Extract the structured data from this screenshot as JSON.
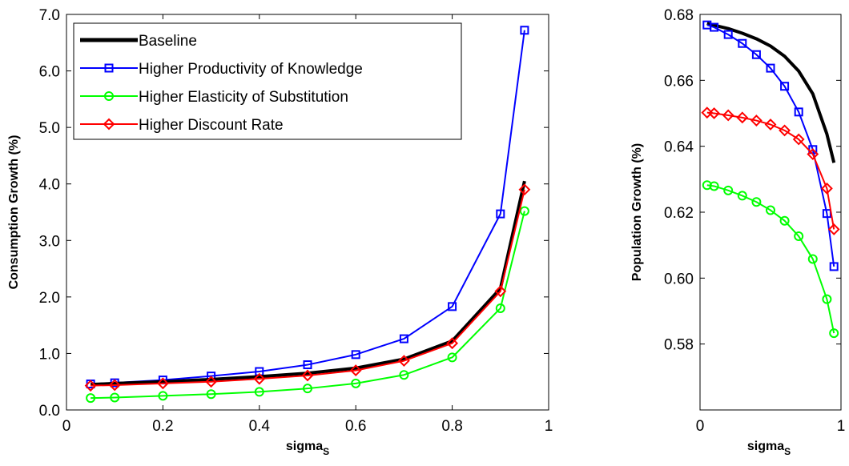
{
  "chart_data": [
    {
      "type": "line",
      "xlabel": "sigma",
      "xlabel_subscript": "S",
      "ylabel": "Consumption Growth (%)",
      "xlim": [
        0,
        1
      ],
      "ylim": [
        0,
        7
      ],
      "xticks": [
        "0",
        "0.2",
        "0.4",
        "0.6",
        "0.8",
        "1"
      ],
      "yticks": [
        "0.0",
        "1.0",
        "2.0",
        "3.0",
        "4.0",
        "5.0",
        "6.0",
        "7.0"
      ],
      "grid": false,
      "legend_position": "top-left",
      "x": [
        0.05,
        0.1,
        0.2,
        0.3,
        0.4,
        0.5,
        0.6,
        0.7,
        0.8,
        0.9,
        0.95
      ],
      "series": [
        {
          "name": "Baseline",
          "color": "#000000",
          "marker": "none",
          "values": [
            0.45,
            0.47,
            0.5,
            0.54,
            0.59,
            0.65,
            0.74,
            0.9,
            1.22,
            2.15,
            4.05
          ]
        },
        {
          "name": "Higher Productivity of Knowledge",
          "color": "#0000ff",
          "marker": "square",
          "values": [
            0.46,
            0.48,
            0.53,
            0.6,
            0.68,
            0.8,
            0.98,
            1.26,
            1.83,
            3.47,
            6.72
          ]
        },
        {
          "name": "Higher Elasticity of Substitution",
          "color": "#00ff00",
          "marker": "circle",
          "values": [
            0.21,
            0.22,
            0.25,
            0.28,
            0.32,
            0.38,
            0.47,
            0.62,
            0.93,
            1.8,
            3.52
          ]
        },
        {
          "name": "Higher Discount Rate",
          "color": "#ff0000",
          "marker": "diamond",
          "values": [
            0.43,
            0.44,
            0.47,
            0.5,
            0.55,
            0.61,
            0.7,
            0.87,
            1.18,
            2.1,
            3.9
          ]
        }
      ]
    },
    {
      "type": "line",
      "xlabel": "sigma",
      "xlabel_subscript": "S",
      "ylabel": "Population Growth (%)",
      "xlim": [
        0,
        1
      ],
      "ylim": [
        0.56,
        0.68
      ],
      "xticks": [
        "0",
        "1"
      ],
      "yticks": [
        "0.58",
        "0.60",
        "0.62",
        "0.64",
        "0.66",
        "0.68"
      ],
      "grid": false,
      "x": [
        0.05,
        0.1,
        0.2,
        0.3,
        0.4,
        0.5,
        0.6,
        0.7,
        0.8,
        0.9,
        0.95
      ],
      "series": [
        {
          "name": "Baseline",
          "color": "#000000",
          "marker": "none",
          "values": [
            0.6773,
            0.6767,
            0.6757,
            0.6743,
            0.6726,
            0.6704,
            0.6673,
            0.6628,
            0.6559,
            0.6437,
            0.635
          ]
        },
        {
          "name": "Higher Productivity of Knowledge",
          "color": "#0000ff",
          "marker": "square",
          "values": [
            0.6768,
            0.6761,
            0.6739,
            0.6712,
            0.6678,
            0.6637,
            0.6582,
            0.6504,
            0.639,
            0.6196,
            0.6035
          ]
        },
        {
          "name": "Higher Elasticity of Substitution",
          "color": "#00ff00",
          "marker": "circle",
          "values": [
            0.6282,
            0.6279,
            0.6266,
            0.625,
            0.6231,
            0.6206,
            0.6174,
            0.6127,
            0.6058,
            0.5936,
            0.5833
          ]
        },
        {
          "name": "Higher Discount Rate",
          "color": "#ff0000",
          "marker": "diamond",
          "values": [
            0.6502,
            0.65,
            0.6494,
            0.6487,
            0.6478,
            0.6466,
            0.6448,
            0.6421,
            0.6376,
            0.6272,
            0.6148
          ]
        }
      ]
    }
  ]
}
